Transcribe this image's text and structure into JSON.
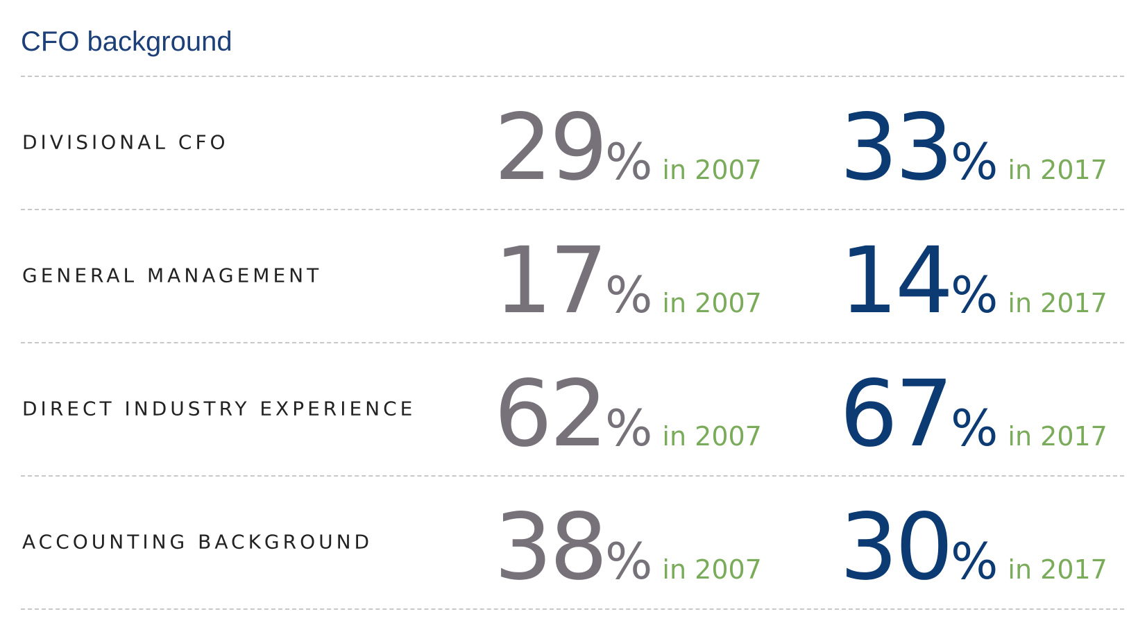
{
  "title": "CFO background",
  "columns": [
    {
      "unit": "%",
      "year": "in 2007"
    },
    {
      "unit": "%",
      "year": "in 2017"
    }
  ],
  "rows": [
    {
      "label": "DIVISIONAL CFO",
      "values": [
        29,
        33
      ]
    },
    {
      "label": "GENERAL MANAGEMENT",
      "values": [
        17,
        14
      ]
    },
    {
      "label": "DIRECT INDUSTRY EXPERIENCE",
      "values": [
        62,
        67
      ]
    },
    {
      "label": "ACCOUNTING BACKGROUND",
      "values": [
        38,
        30
      ]
    }
  ]
}
